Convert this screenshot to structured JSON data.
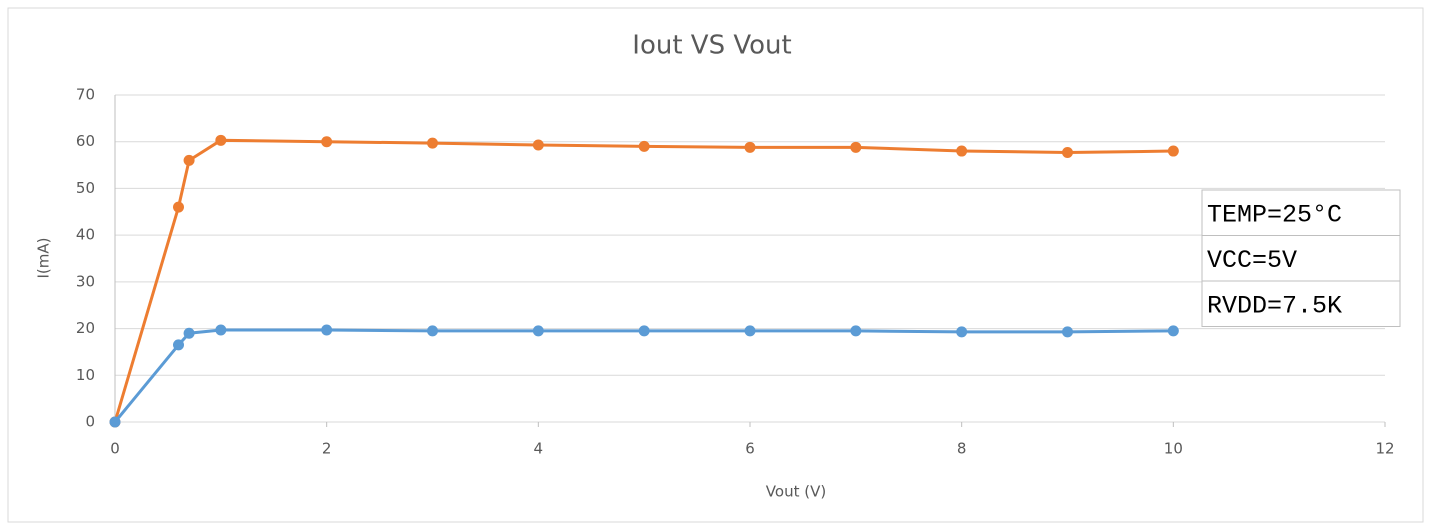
{
  "chart_data": {
    "type": "line",
    "title": "Iout VS Vout",
    "x_label": "Vout (V)",
    "y_label": "I(mA)",
    "x": [
      0,
      0.6,
      0.7,
      1,
      2,
      3,
      4,
      5,
      6,
      7,
      8,
      9,
      10
    ],
    "series": [
      {
        "color": "#ed7d31",
        "values": [
          0,
          46,
          56,
          60.3,
          60,
          59.7,
          59.3,
          59,
          58.8,
          58.8,
          58,
          57.7,
          58
        ]
      },
      {
        "color": "#5b9bd5",
        "values": [
          0,
          16.5,
          19,
          19.7,
          19.7,
          19.5,
          19.5,
          19.5,
          19.5,
          19.5,
          19.3,
          19.3,
          19.5
        ]
      }
    ],
    "xlim": [
      0,
      12
    ],
    "xticks": [
      0,
      2,
      4,
      6,
      8,
      10,
      12
    ],
    "ylim": [
      0,
      70
    ],
    "yticks": [
      0,
      10,
      20,
      30,
      40,
      50,
      60,
      70
    ],
    "grid": true,
    "annotations": [
      "TEMP=25°C",
      "VCC=5V",
      "RVDD=7.5K"
    ]
  }
}
